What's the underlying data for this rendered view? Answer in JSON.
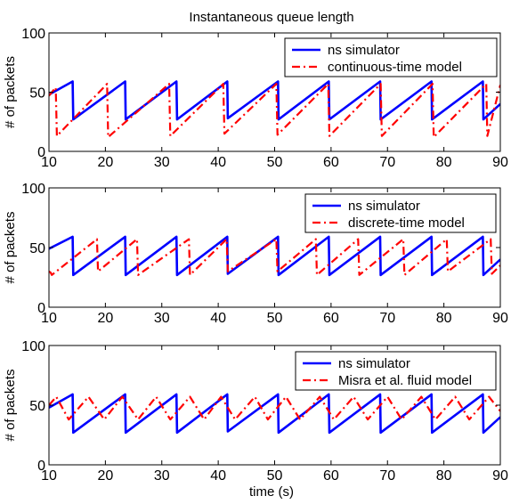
{
  "figure": {
    "title": "Instantaneous queue length",
    "xlabel": "time (s)"
  },
  "colors": {
    "sim": "#0000ff",
    "model": "#ff0000"
  },
  "chart_data": [
    {
      "type": "line",
      "ylabel": "# of packets",
      "xlim": [
        10,
        90
      ],
      "ylim": [
        0,
        100
      ],
      "xticks": [
        "10",
        "20",
        "30",
        "40",
        "50",
        "60",
        "70",
        "80",
        "90"
      ],
      "yticks": [
        "0",
        "50",
        "100"
      ],
      "legend_placement": "top-right",
      "series": [
        {
          "name": "ns simulator",
          "style": "solid",
          "x": [
            10,
            14.2,
            14.3,
            23.5,
            23.6,
            32.6,
            32.7,
            41.6,
            41.7,
            50.6,
            50.7,
            59.6,
            59.7,
            68.7,
            68.8,
            77.8,
            77.9,
            86.9,
            87.0,
            90
          ],
          "y": [
            48,
            59,
            27,
            59,
            27,
            59,
            27,
            59,
            28,
            59,
            27,
            59,
            27,
            59,
            27,
            59,
            27,
            59,
            27,
            40
          ]
        },
        {
          "name": "continuous-time model",
          "style": "dashdot",
          "x": [
            10,
            11.2,
            11.4,
            20.3,
            20.5,
            31.3,
            31.5,
            40.9,
            41.1,
            50.3,
            50.5,
            59.5,
            59.7,
            68.8,
            69.0,
            78.0,
            78.2,
            87.5,
            87.7,
            90
          ],
          "y": [
            47,
            54,
            13,
            57,
            12,
            57,
            13,
            57,
            15,
            57,
            14,
            57,
            13,
            57,
            13,
            57,
            12,
            57,
            13,
            56
          ]
        }
      ]
    },
    {
      "type": "line",
      "ylabel": "# of packets",
      "xlim": [
        10,
        90
      ],
      "ylim": [
        0,
        100
      ],
      "xticks": [
        "10",
        "20",
        "30",
        "40",
        "50",
        "60",
        "70",
        "80",
        "90"
      ],
      "yticks": [
        "0",
        "50",
        "100"
      ],
      "legend_placement": "top-right",
      "series": [
        {
          "name": "ns simulator",
          "style": "solid",
          "x": [
            10,
            14.2,
            14.3,
            23.5,
            23.6,
            32.6,
            32.7,
            41.6,
            41.7,
            50.6,
            50.7,
            59.6,
            59.7,
            68.7,
            68.8,
            77.8,
            77.9,
            86.9,
            87.0,
            90
          ],
          "y": [
            49,
            59,
            27,
            59,
            27,
            59,
            27,
            59,
            28,
            59,
            27,
            59,
            27,
            59,
            27,
            59,
            27,
            59,
            27,
            40
          ]
        },
        {
          "name": "discrete-time model",
          "style": "dashdot",
          "x": [
            10,
            10.3,
            10.5,
            18.5,
            18.7,
            25.6,
            25.8,
            34.8,
            35.0,
            41.5,
            41.7,
            50.3,
            50.5,
            57.3,
            57.5,
            64.8,
            65.0,
            72.8,
            73.0,
            80.5,
            80.7,
            88.3,
            88.5,
            90
          ],
          "y": [
            30,
            29,
            27,
            57,
            30,
            57,
            27,
            57,
            27,
            57,
            30,
            57,
            30,
            57,
            27,
            57,
            27,
            57,
            27,
            57,
            30,
            57,
            28,
            35
          ]
        }
      ]
    },
    {
      "type": "line",
      "ylabel": "# of packets",
      "xlim": [
        10,
        90
      ],
      "ylim": [
        0,
        100
      ],
      "xticks": [
        "10",
        "20",
        "30",
        "40",
        "50",
        "60",
        "70",
        "80",
        "90"
      ],
      "yticks": [
        "0",
        "50",
        "100"
      ],
      "legend_placement": "top-right",
      "series": [
        {
          "name": "ns simulator",
          "style": "solid",
          "x": [
            10,
            14.2,
            14.3,
            23.5,
            23.6,
            32.6,
            32.7,
            41.6,
            41.7,
            50.6,
            50.7,
            59.6,
            59.7,
            68.7,
            68.8,
            77.8,
            77.9,
            86.9,
            87.0,
            90
          ],
          "y": [
            48,
            59,
            27,
            59,
            27,
            59,
            27,
            59,
            28,
            59,
            27,
            59,
            27,
            59,
            27,
            59,
            27,
            59,
            27,
            40
          ]
        },
        {
          "name": "Misra et al. fluid model",
          "style": "dashdot",
          "x": [
            10,
            11.3,
            13.5,
            17.0,
            19.8,
            23.0,
            25.8,
            29.0,
            31.5,
            35.0,
            37.5,
            40.5,
            43.0,
            46.5,
            48.8,
            52.0,
            54.5,
            58.0,
            60.5,
            64.0,
            66.5,
            70.0,
            72.5,
            76.0,
            78.5,
            82.0,
            84.5,
            88.0,
            90.0
          ],
          "y": [
            50,
            57,
            38,
            57,
            38,
            57,
            38,
            57,
            38,
            57,
            38,
            57,
            38,
            57,
            38,
            57,
            38,
            57,
            38,
            57,
            38,
            57,
            38,
            57,
            38,
            57,
            38,
            57,
            45
          ]
        }
      ]
    }
  ]
}
